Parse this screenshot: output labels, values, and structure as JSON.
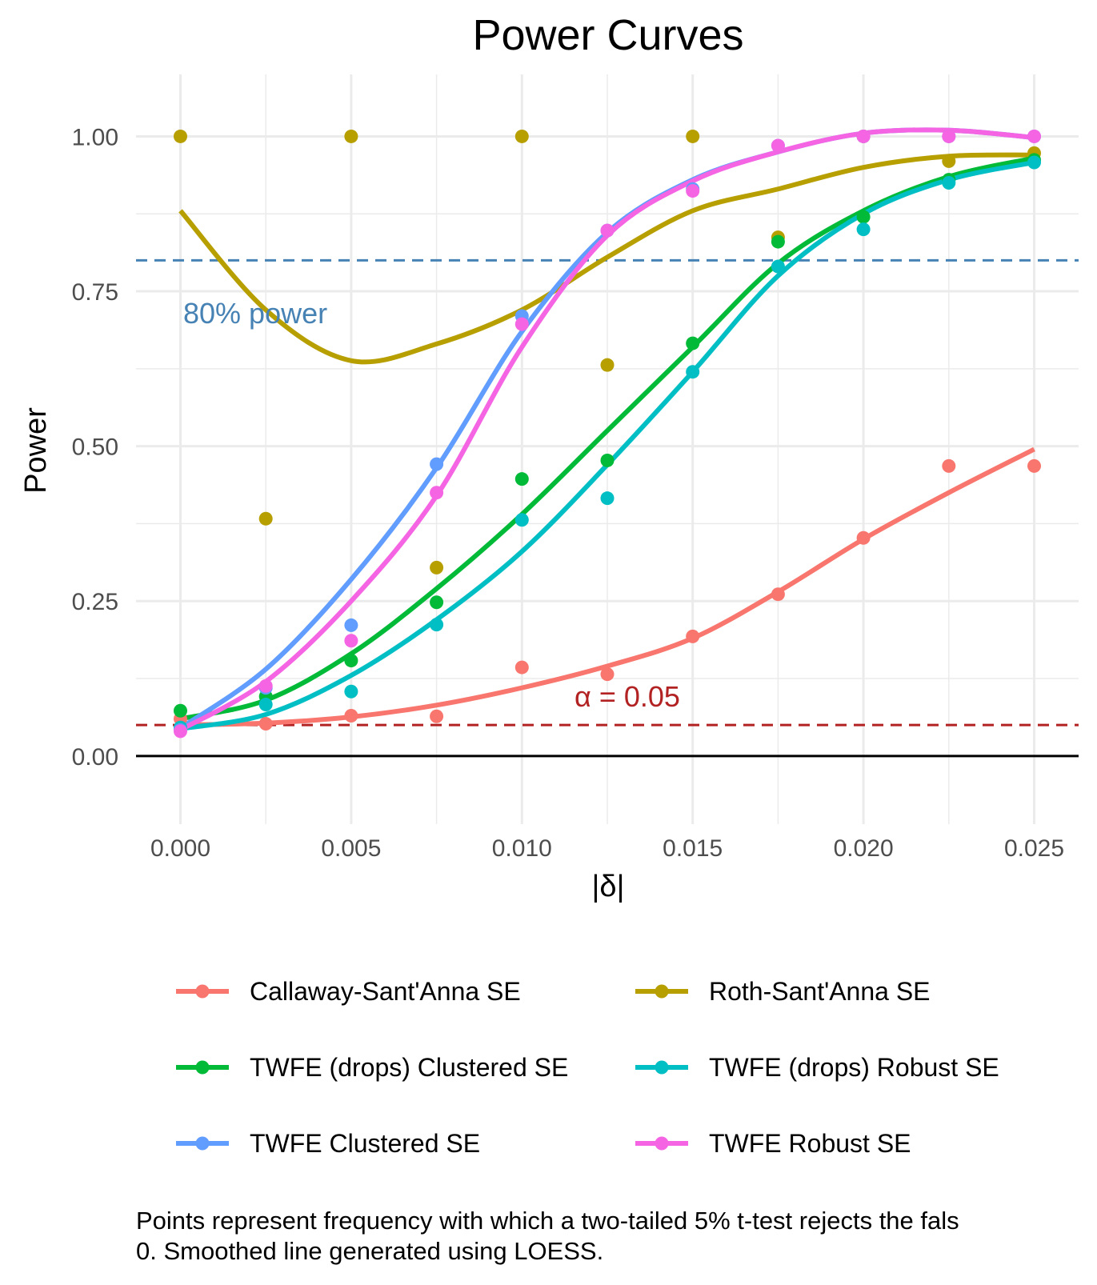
{
  "chart_data": {
    "type": "line",
    "title": "Power Curves",
    "xlabel": "|δ|",
    "ylabel": "Power",
    "xlim": [
      -0.0013,
      0.0263
    ],
    "ylim": [
      -0.11,
      1.1
    ],
    "x_ticks": [
      0.0,
      0.005,
      0.01,
      0.015,
      0.02,
      0.025
    ],
    "x_tick_labels": [
      "0.000",
      "0.005",
      "0.010",
      "0.015",
      "0.020",
      "0.025"
    ],
    "y_ticks": [
      0.0,
      0.25,
      0.5,
      0.75,
      1.0
    ],
    "y_tick_labels": [
      "0.00",
      "0.25",
      "0.50",
      "0.75",
      "1.00"
    ],
    "grid": true,
    "legend_position": "bottom",
    "x": [
      0.0,
      0.0025,
      0.005,
      0.0075,
      0.01,
      0.0125,
      0.015,
      0.0175,
      0.02,
      0.0225,
      0.025
    ],
    "series": [
      {
        "name": "Callaway-Sant'Anna SE",
        "color": "#F8766D",
        "points": [
          0.06,
          0.052,
          0.065,
          0.064,
          0.143,
          0.132,
          0.193,
          0.261,
          0.352,
          0.468,
          0.468
        ],
        "smooth": [
          0.05,
          0.053,
          0.063,
          0.082,
          0.11,
          0.145,
          0.19,
          0.265,
          0.35,
          0.425,
          0.495
        ]
      },
      {
        "name": "Roth-Sant'Anna SE",
        "color": "#B79F00",
        "points": [
          1.0,
          0.383,
          1.0,
          0.304,
          1.0,
          0.631,
          1.0,
          0.837,
          1.0,
          0.96,
          0.973
        ],
        "smooth": [
          0.88,
          0.72,
          0.638,
          0.665,
          0.72,
          0.805,
          0.88,
          0.915,
          0.95,
          0.968,
          0.97
        ]
      },
      {
        "name": "TWFE (drops) Clustered SE",
        "color": "#00BA38",
        "points": [
          0.073,
          0.096,
          0.154,
          0.248,
          0.447,
          0.477,
          0.666,
          0.83,
          0.87,
          0.93,
          0.962
        ],
        "smooth": [
          0.06,
          0.09,
          0.165,
          0.27,
          0.39,
          0.525,
          0.66,
          0.795,
          0.88,
          0.935,
          0.965
        ]
      },
      {
        "name": "TWFE (drops) Robust SE",
        "color": "#00BFC4",
        "points": [
          0.046,
          0.083,
          0.104,
          0.212,
          0.381,
          0.416,
          0.62,
          0.79,
          0.85,
          0.925,
          0.958
        ],
        "smooth": [
          0.044,
          0.067,
          0.13,
          0.22,
          0.33,
          0.47,
          0.62,
          0.775,
          0.875,
          0.93,
          0.958
        ]
      },
      {
        "name": "TWFE Clustered SE",
        "color": "#619CFF",
        "points": [
          0.042,
          0.11,
          0.211,
          0.471,
          0.71,
          0.848,
          0.915,
          0.985,
          1.0,
          1.0,
          1.0
        ],
        "smooth": [
          0.045,
          0.14,
          0.285,
          0.465,
          0.685,
          0.845,
          0.93,
          0.975,
          1.005,
          1.01,
          0.998
        ]
      },
      {
        "name": "TWFE Robust SE",
        "color": "#F564E3",
        "points": [
          0.04,
          0.113,
          0.186,
          0.425,
          0.697,
          0.848,
          0.912,
          0.985,
          1.0,
          1.0,
          1.0
        ],
        "smooth": [
          0.042,
          0.12,
          0.25,
          0.42,
          0.66,
          0.84,
          0.928,
          0.975,
          1.005,
          1.01,
          0.998
        ]
      }
    ],
    "reference_lines": [
      {
        "y": 0.8,
        "label": "80% power",
        "color": "#4682B4",
        "style": "dashed"
      },
      {
        "y": 0.05,
        "label": "α = 0.05",
        "color": "#B22222",
        "style": "dashed"
      },
      {
        "y": 0.0,
        "label": "",
        "color": "#000000",
        "style": "solid"
      }
    ],
    "caption": [
      "Points represent frequency with which a two-tailed 5% t-test rejects the fals",
      "0. Smoothed line generated using LOESS."
    ]
  }
}
